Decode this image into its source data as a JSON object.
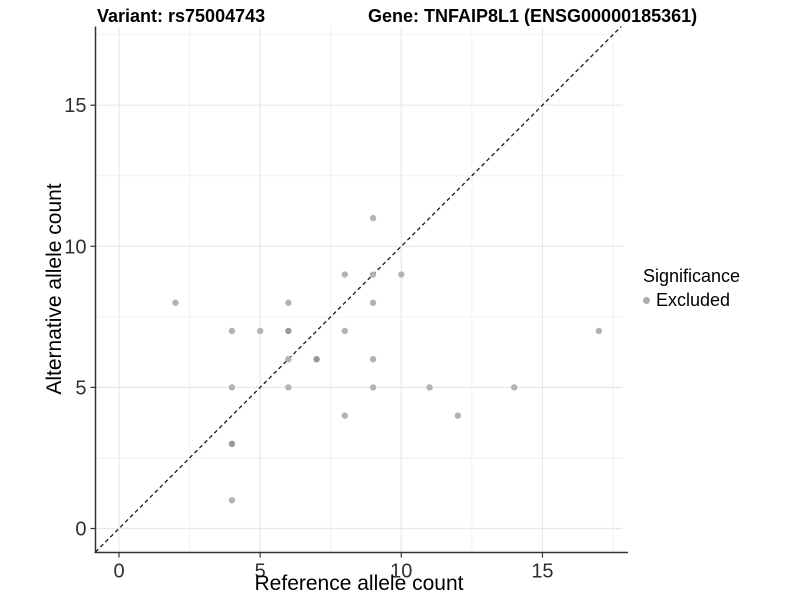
{
  "chart_data": {
    "type": "scatter",
    "title_left": "Variant: rs75004743",
    "title_right": "Gene: TNFAIP8L1 (ENSG00000185361)",
    "xlabel": "Reference allele count",
    "ylabel": "Alternative allele count",
    "x_ticks": [
      0,
      5,
      10,
      15
    ],
    "y_ticks": [
      0,
      5,
      10,
      15
    ],
    "x_minor_ticks": [
      2.5,
      7.5,
      12.5,
      17.5
    ],
    "y_minor_ticks": [
      2.5,
      7.5,
      12.5,
      17.5
    ],
    "xlim": [
      -0.85,
      17.85
    ],
    "ylim": [
      -0.85,
      17.8
    ],
    "grid": true,
    "identity_line": {
      "style": "dashed",
      "slope": 1,
      "intercept": 0,
      "color": "#1a1a1a"
    },
    "legend": {
      "title": "Significance",
      "position": "right",
      "items": [
        {
          "label": "Excluded",
          "color": "#ababab"
        }
      ]
    },
    "point_color": "#b3b3b3",
    "point_color_overlap": "#999999",
    "grid_major_color": "#e8e8e8",
    "grid_minor_color": "#f2f2f2",
    "axis_color": "#333333",
    "points": [
      {
        "x": 2,
        "y": 8,
        "n": 1
      },
      {
        "x": 4,
        "y": 1,
        "n": 1
      },
      {
        "x": 4,
        "y": 3,
        "n": 2
      },
      {
        "x": 4,
        "y": 5,
        "n": 1
      },
      {
        "x": 4,
        "y": 7,
        "n": 1
      },
      {
        "x": 5,
        "y": 7,
        "n": 1
      },
      {
        "x": 6,
        "y": 5,
        "n": 1
      },
      {
        "x": 6,
        "y": 6,
        "n": 1
      },
      {
        "x": 6,
        "y": 7,
        "n": 2
      },
      {
        "x": 6,
        "y": 8,
        "n": 1
      },
      {
        "x": 7,
        "y": 6,
        "n": 2
      },
      {
        "x": 8,
        "y": 4,
        "n": 1
      },
      {
        "x": 8,
        "y": 7,
        "n": 1
      },
      {
        "x": 8,
        "y": 9,
        "n": 1
      },
      {
        "x": 9,
        "y": 5,
        "n": 1
      },
      {
        "x": 9,
        "y": 6,
        "n": 1
      },
      {
        "x": 9,
        "y": 8,
        "n": 1
      },
      {
        "x": 9,
        "y": 9,
        "n": 1
      },
      {
        "x": 9,
        "y": 11,
        "n": 1
      },
      {
        "x": 10,
        "y": 9,
        "n": 1
      },
      {
        "x": 11,
        "y": 5,
        "n": 1
      },
      {
        "x": 12,
        "y": 4,
        "n": 1
      },
      {
        "x": 14,
        "y": 5,
        "n": 1
      },
      {
        "x": 17,
        "y": 7,
        "n": 1
      }
    ]
  }
}
